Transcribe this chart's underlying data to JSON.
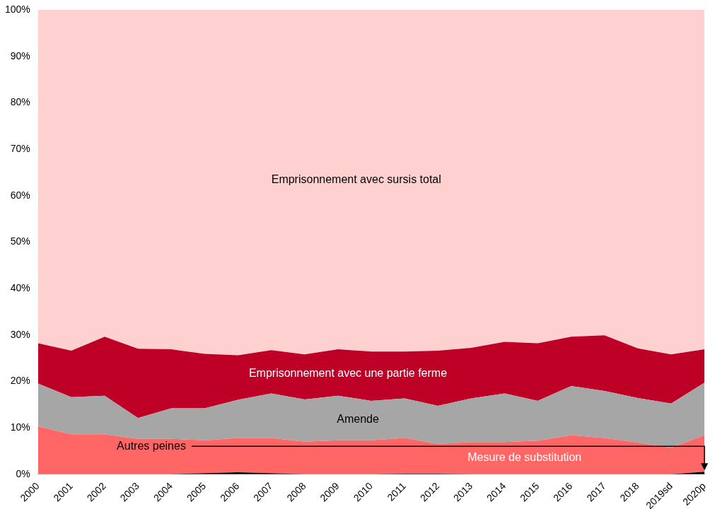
{
  "chart_data": {
    "type": "area",
    "stacked": true,
    "categories": [
      "2000",
      "2001",
      "2002",
      "2003",
      "2004",
      "2005",
      "2006",
      "2007",
      "2008",
      "2009",
      "2010",
      "2011",
      "2012",
      "2013",
      "2014",
      "2015",
      "2016",
      "2017",
      "2018",
      "2019sd",
      "2020p"
    ],
    "series": [
      {
        "name": "Autres peines",
        "color": "#000000",
        "values": [
          0,
          0,
          0,
          0,
          0,
          0.2,
          0.4,
          0.2,
          0,
          0,
          0,
          0.1,
          0.1,
          0,
          0,
          0,
          0,
          0,
          0,
          0,
          0.5
        ]
      },
      {
        "name": "Mesure de substitution",
        "color": "#ff6666",
        "values": [
          10.3,
          8.6,
          8.6,
          7.6,
          7.6,
          7.1,
          7.4,
          7.6,
          7.0,
          7.3,
          7.3,
          7.7,
          6.4,
          6.9,
          6.9,
          7.2,
          8.4,
          7.8,
          6.8,
          5.7,
          7.9
        ]
      },
      {
        "name": "Amende",
        "color": "#a6a6a6",
        "values": [
          9.2,
          8.0,
          8.3,
          4.5,
          6.6,
          6.9,
          8.2,
          9.6,
          9.1,
          9.6,
          8.5,
          8.5,
          8.2,
          9.4,
          10.5,
          8.6,
          10.6,
          10.1,
          9.6,
          9.5,
          11.3
        ]
      },
      {
        "name": "Emprisonnement avec une partie ferme",
        "color": "#be0027",
        "values": [
          8.7,
          10.0,
          12.7,
          14.9,
          12.7,
          11.7,
          9.6,
          9.3,
          9.7,
          10.0,
          10.6,
          10.1,
          11.9,
          10.9,
          11.1,
          12.4,
          10.6,
          12.0,
          10.7,
          10.6,
          7.2
        ]
      },
      {
        "name": "Emprisonnement avec sursis total",
        "color": "#ffd0d0",
        "values": [
          71.8,
          73.4,
          70.4,
          73.0,
          73.1,
          74.1,
          74.4,
          73.3,
          74.2,
          73.1,
          73.6,
          73.6,
          73.4,
          72.8,
          71.5,
          71.8,
          70.4,
          70.1,
          72.9,
          74.2,
          73.1
        ]
      }
    ],
    "ylim": [
      0,
      100
    ],
    "yticks": [
      {
        "value": 0,
        "label": "0%"
      },
      {
        "value": 10,
        "label": "10%"
      },
      {
        "value": 20,
        "label": "20%"
      },
      {
        "value": 30,
        "label": "30%"
      },
      {
        "value": 40,
        "label": "40%"
      },
      {
        "value": 50,
        "label": "50%"
      },
      {
        "value": 60,
        "label": "60%"
      },
      {
        "value": 70,
        "label": "70%"
      },
      {
        "value": 80,
        "label": "80%"
      },
      {
        "value": 90,
        "label": "90%"
      },
      {
        "value": 100,
        "label": "100%"
      }
    ],
    "grid": false,
    "legend": false
  }
}
